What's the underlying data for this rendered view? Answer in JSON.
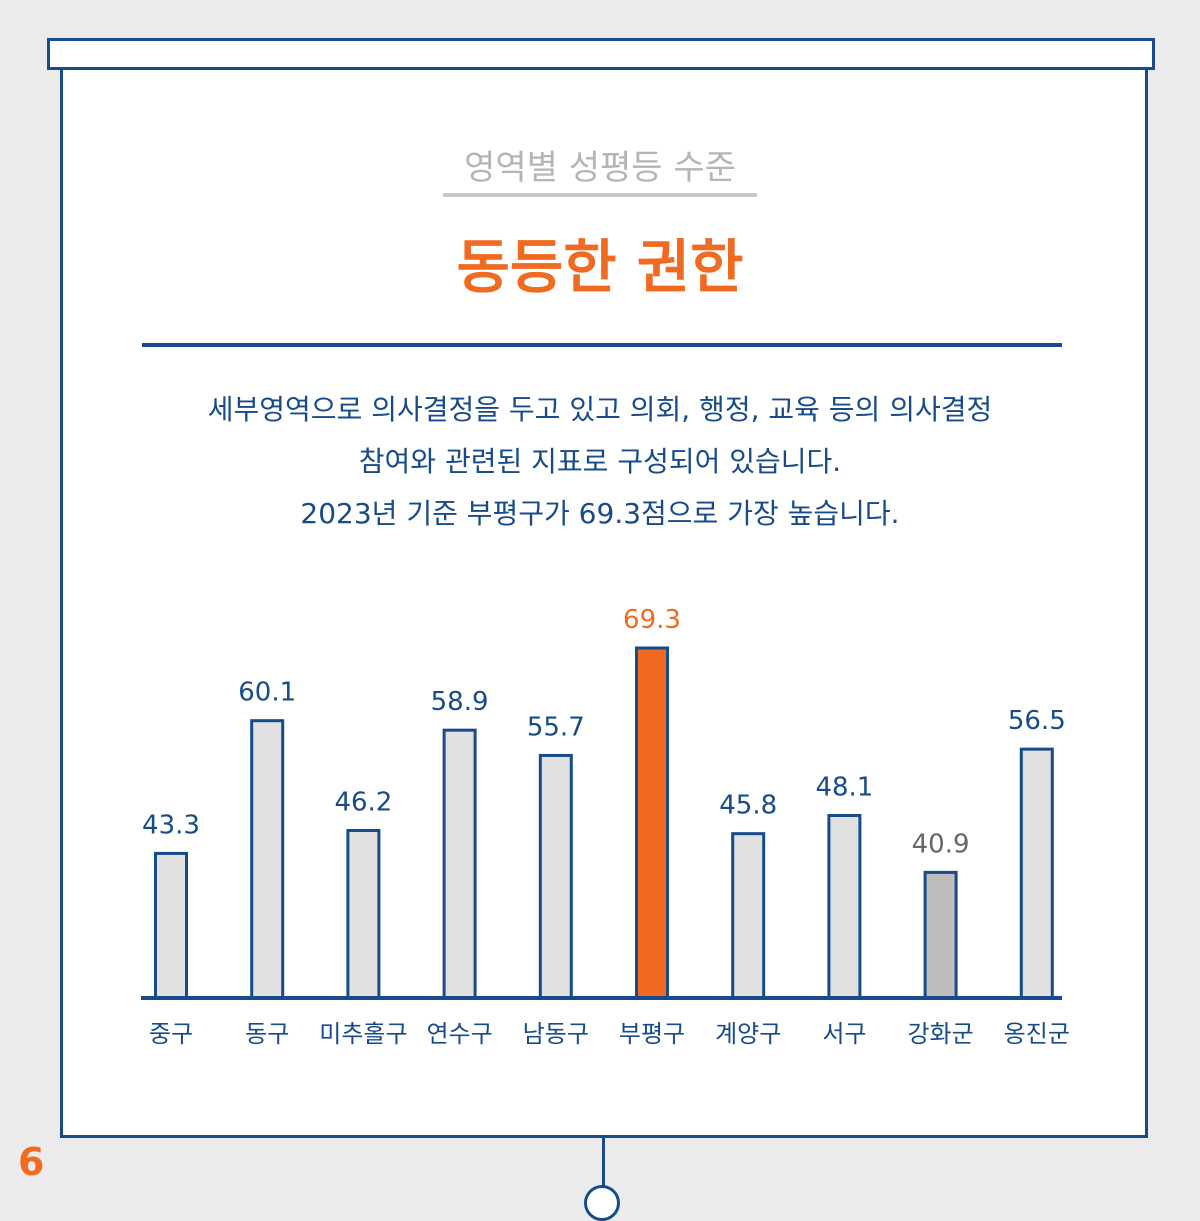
{
  "page_number": "6",
  "subtitle": "영역별 성평등 수준",
  "title": "동등한 권한",
  "description": [
    "세부영역으로 의사결정을 두고 있고 의회, 행정, 교육 등의 의사결정",
    "참여와 관련된 지표로 구성되어 있습니다.",
    "2023년 기준 부평구가 69.3점으로 가장 높습니다."
  ],
  "colors": {
    "navy": "#174b8c",
    "orange": "#f06a22",
    "bar_fill": "#e1e1e1",
    "bar_fill_min": "#bdbdbd",
    "label_gray": "#666666"
  },
  "chart_data": {
    "type": "bar",
    "title": "",
    "xlabel": "",
    "ylabel": "",
    "categories": [
      "중구",
      "동구",
      "미추홀구",
      "연수구",
      "남동구",
      "부평구",
      "계양구",
      "서구",
      "강화군",
      "옹진군"
    ],
    "values": [
      43.3,
      60.1,
      46.2,
      58.9,
      55.7,
      69.3,
      45.8,
      48.1,
      40.9,
      56.5
    ],
    "value_labels": [
      "43.3",
      "60.1",
      "46.2",
      "58.9",
      "55.7",
      "69.3",
      "45.8",
      "48.1",
      "40.9",
      "56.5"
    ],
    "highlight_max": "부평구",
    "highlight_min": "강화군",
    "ylim": [
      25,
      70
    ],
    "grid": false,
    "legend": "none"
  }
}
